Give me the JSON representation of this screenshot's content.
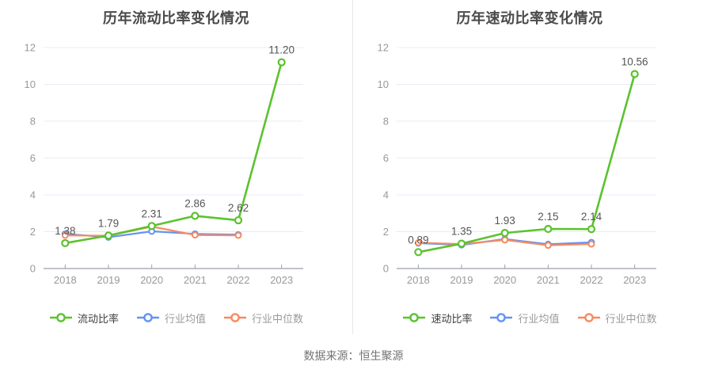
{
  "page": {
    "source_caption": "数据来源：恒生聚源"
  },
  "colors": {
    "main": "#5CC22F",
    "industry_avg": "#6293F3",
    "industry_median": "#F58B63",
    "grid": "#E7ECF4",
    "axis": "#9AA1A9",
    "tick_label": "#999999",
    "value_label": "#555555",
    "title": "#4A4A4A",
    "legend_main_text": "#404040",
    "legend_muted_text": "#9A9A9A",
    "divider": "#E8E8E8",
    "source_text": "#737373"
  },
  "chart_data": [
    {
      "type": "line",
      "title": "历年流动比率变化情况",
      "categories": [
        "2018",
        "2019",
        "2020",
        "2021",
        "2022",
        "2023"
      ],
      "xlabel": "",
      "ylabel": "",
      "ylim": [
        0,
        12
      ],
      "y_ticks": [
        0,
        2,
        4,
        6,
        8,
        10,
        12
      ],
      "grid": true,
      "legend_position": "bottom",
      "series": [
        {
          "name": "流动比率",
          "color_key": "main",
          "values": [
            1.38,
            1.79,
            2.31,
            2.86,
            2.62,
            11.2
          ],
          "labels": [
            "1.38",
            "1.79",
            "2.31",
            "2.86",
            "2.62",
            "11.20"
          ]
        },
        {
          "name": "行业均值",
          "color_key": "industry_avg",
          "values": [
            1.88,
            1.7,
            2.02,
            1.88,
            1.84,
            null
          ]
        },
        {
          "name": "行业中位数",
          "color_key": "industry_median",
          "values": [
            1.8,
            1.78,
            2.28,
            1.82,
            1.8,
            null
          ]
        }
      ]
    },
    {
      "type": "line",
      "title": "历年速动比率变化情况",
      "categories": [
        "2018",
        "2019",
        "2020",
        "2021",
        "2022",
        "2023"
      ],
      "xlabel": "",
      "ylabel": "",
      "ylim": [
        0,
        12
      ],
      "y_ticks": [
        0,
        2,
        4,
        6,
        8,
        10,
        12
      ],
      "grid": true,
      "legend_position": "bottom",
      "series": [
        {
          "name": "速动比率",
          "color_key": "main",
          "values": [
            0.89,
            1.35,
            1.93,
            2.15,
            2.14,
            10.56
          ],
          "labels": [
            "0.89",
            "1.35",
            "1.93",
            "2.15",
            "2.14",
            "10.56"
          ]
        },
        {
          "name": "行业均值",
          "color_key": "industry_avg",
          "values": [
            1.38,
            1.28,
            1.6,
            1.32,
            1.42,
            null
          ]
        },
        {
          "name": "行业中位数",
          "color_key": "industry_median",
          "values": [
            1.4,
            1.33,
            1.55,
            1.26,
            1.33,
            null
          ]
        }
      ]
    }
  ]
}
